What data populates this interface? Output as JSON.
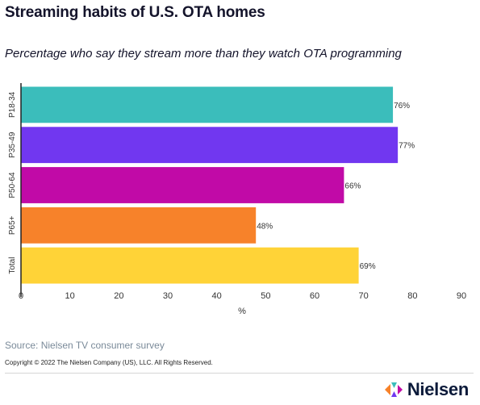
{
  "title": "Streaming habits of U.S. OTA homes",
  "subtitle": "Percentage who say they stream more than they watch OTA programming",
  "source": "Source: Nielsen TV consumer survey",
  "copyright": "Copyright © 2022 The Nielsen Company (US), LLC. All Rights Reserved.",
  "brand": {
    "name": "Nielsen",
    "logo_icon": "nielsen-logo-icon"
  },
  "chart_data": {
    "type": "bar",
    "orientation": "horizontal",
    "categories": [
      "P18-34",
      "P35-49",
      "P50-64",
      "P65+",
      "Total"
    ],
    "values": [
      76,
      77,
      66,
      48,
      69
    ],
    "data_labels": [
      "76%",
      "77%",
      "66%",
      "48%",
      "69%"
    ],
    "colors": [
      "#3bbdbb",
      "#7137f0",
      "#c10aa7",
      "#f7822a",
      "#ffd337"
    ],
    "xlabel": "%",
    "ylabel": "",
    "xlim": [
      0,
      90
    ],
    "xticks": [
      0,
      10,
      20,
      30,
      40,
      50,
      60,
      70,
      80,
      90
    ],
    "grid": false,
    "legend": "none"
  }
}
